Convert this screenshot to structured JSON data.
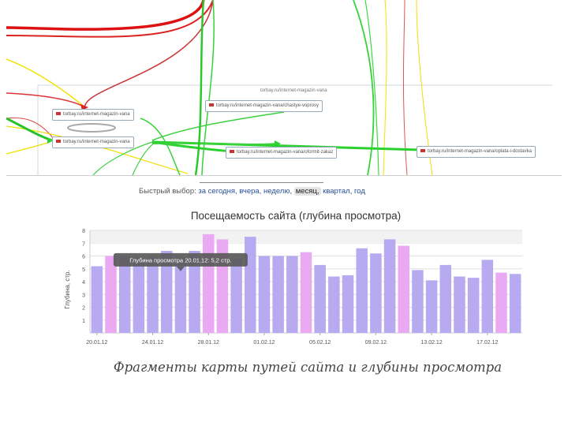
{
  "map": {
    "header_url": "torbay.ru/internet-magazin-vana",
    "nodes": [
      {
        "label": "torbay.ru/internet-magazin-vana"
      },
      {
        "label": "torbay.ru/internet-magazin-vana/chastye-voprosy"
      },
      {
        "label": "torbay.ru/internet-magazin-vana"
      },
      {
        "label": "torbay.ru/internet-magazin-vana/oformit-zakaz"
      },
      {
        "label": "torbay.ru/internet-magazin-vana/oplata-i-dostavka"
      }
    ]
  },
  "quick_select": {
    "label": "Быстрый выбор:",
    "options": [
      "за сегодня,",
      "вчера,",
      "неделю,",
      "месяц,",
      "квартал,",
      "год"
    ],
    "selected_index": 3
  },
  "chart_data": {
    "type": "bar",
    "title": "Посещаемость сайта (глубина просмотра)",
    "ylabel": "Глубина, стр.",
    "ylim": [
      0,
      8
    ],
    "yticks": [
      "1",
      "2",
      "3",
      "4",
      "5",
      "6",
      "7",
      "8"
    ],
    "xtick_labels": [
      "20.01.12",
      "24.01.12",
      "28.01.12",
      "01.02.12",
      "05.02.12",
      "09.02.12",
      "13.02.12",
      "17.02.12"
    ],
    "values": [
      5.2,
      6.0,
      6.0,
      5.9,
      5.9,
      6.4,
      5.9,
      6.4,
      7.7,
      7.3,
      5.8,
      7.5,
      6.0,
      6.0,
      6.0,
      6.3,
      5.3,
      4.4,
      4.5,
      6.6,
      6.2,
      7.3,
      6.8,
      4.9,
      4.1,
      5.3,
      4.4,
      4.3,
      5.7,
      4.7,
      4.6
    ],
    "weekend_indices": [
      1,
      8,
      9,
      15,
      22,
      29
    ],
    "colors": {
      "weekday": "#b8aaf0",
      "weekend": "#e9aaf3",
      "grid": "#e0e0e0"
    },
    "tooltip": {
      "text": "Глубина просмотра 20.01.12: 5,2 стр.",
      "bar_index": 6
    }
  },
  "caption": "Фрагменты карты путей сайта и глубины просмотра"
}
